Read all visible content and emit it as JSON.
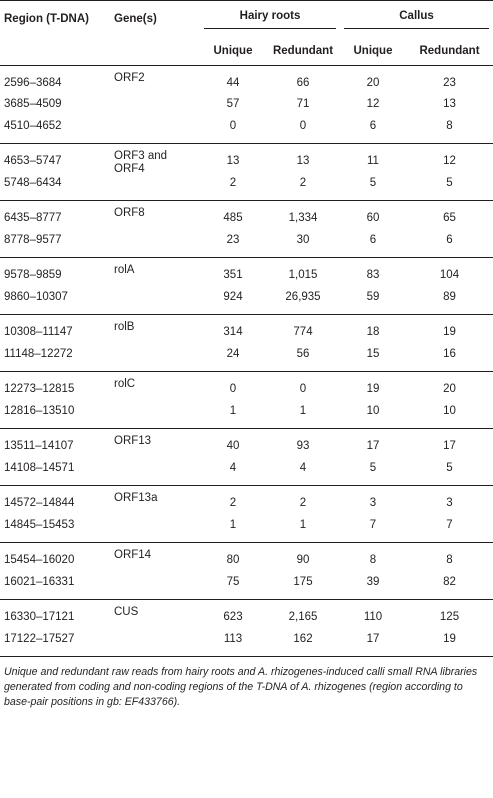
{
  "headers": {
    "region": "Region (T-DNA)",
    "genes": "Gene(s)",
    "hairy_roots": "Hairy roots",
    "callus": "Callus",
    "unique": "Unique",
    "redundant": "Redundant"
  },
  "groups": [
    {
      "gene": "ORF2",
      "rows": [
        {
          "region": "2596–3684",
          "hr_u": "44",
          "hr_r": "66",
          "ca_u": "20",
          "ca_r": "23"
        },
        {
          "region": "3685–4509",
          "hr_u": "57",
          "hr_r": "71",
          "ca_u": "12",
          "ca_r": "13"
        },
        {
          "region": "4510–4652",
          "hr_u": "0",
          "hr_r": "0",
          "ca_u": "6",
          "ca_r": "8"
        }
      ]
    },
    {
      "gene": "ORF3 and ORF4",
      "rows": [
        {
          "region": "4653–5747",
          "hr_u": "13",
          "hr_r": "13",
          "ca_u": "11",
          "ca_r": "12"
        },
        {
          "region": "5748–6434",
          "hr_u": "2",
          "hr_r": "2",
          "ca_u": "5",
          "ca_r": "5"
        }
      ]
    },
    {
      "gene": "ORF8",
      "rows": [
        {
          "region": "6435–8777",
          "hr_u": "485",
          "hr_r": "1,334",
          "ca_u": "60",
          "ca_r": "65"
        },
        {
          "region": "8778–9577",
          "hr_u": "23",
          "hr_r": "30",
          "ca_u": "6",
          "ca_r": "6"
        }
      ]
    },
    {
      "gene": "rolA",
      "rows": [
        {
          "region": "9578–9859",
          "hr_u": "351",
          "hr_r": "1,015",
          "ca_u": "83",
          "ca_r": "104"
        },
        {
          "region": "9860–10307",
          "hr_u": "924",
          "hr_r": "26,935",
          "ca_u": "59",
          "ca_r": "89"
        }
      ]
    },
    {
      "gene": "rolB",
      "rows": [
        {
          "region": "10308–11147",
          "hr_u": "314",
          "hr_r": "774",
          "ca_u": "18",
          "ca_r": "19"
        },
        {
          "region": "11148–12272",
          "hr_u": "24",
          "hr_r": "56",
          "ca_u": "15",
          "ca_r": "16"
        }
      ]
    },
    {
      "gene": "rolC",
      "rows": [
        {
          "region": "12273–12815",
          "hr_u": "0",
          "hr_r": "0",
          "ca_u": "19",
          "ca_r": "20"
        },
        {
          "region": "12816–13510",
          "hr_u": "1",
          "hr_r": "1",
          "ca_u": "10",
          "ca_r": "10"
        }
      ]
    },
    {
      "gene": "ORF13",
      "rows": [
        {
          "region": "13511–14107",
          "hr_u": "40",
          "hr_r": "93",
          "ca_u": "17",
          "ca_r": "17"
        },
        {
          "region": "14108–14571",
          "hr_u": "4",
          "hr_r": "4",
          "ca_u": "5",
          "ca_r": "5"
        }
      ]
    },
    {
      "gene": "ORF13a",
      "rows": [
        {
          "region": "14572–14844",
          "hr_u": "2",
          "hr_r": "2",
          "ca_u": "3",
          "ca_r": "3"
        },
        {
          "region": "14845–15453",
          "hr_u": "1",
          "hr_r": "1",
          "ca_u": "7",
          "ca_r": "7"
        }
      ]
    },
    {
      "gene": "ORF14",
      "rows": [
        {
          "region": "15454–16020",
          "hr_u": "80",
          "hr_r": "90",
          "ca_u": "8",
          "ca_r": "8"
        },
        {
          "region": "16021–16331",
          "hr_u": "75",
          "hr_r": "175",
          "ca_u": "39",
          "ca_r": "82"
        }
      ]
    },
    {
      "gene": "CUS",
      "rows": [
        {
          "region": "16330–17121",
          "hr_u": "623",
          "hr_r": "2,165",
          "ca_u": "110",
          "ca_r": "125"
        },
        {
          "region": "17122–17527",
          "hr_u": "113",
          "hr_r": "162",
          "ca_u": "17",
          "ca_r": "19"
        }
      ]
    }
  ],
  "footnote": "Unique and redundant raw reads from hairy roots and A. rhizogenes-induced calli small RNA libraries generated from coding and non-coding regions of the T-DNA of A. rhizogenes (region according to base-pair positions in gb: EF433766)."
}
